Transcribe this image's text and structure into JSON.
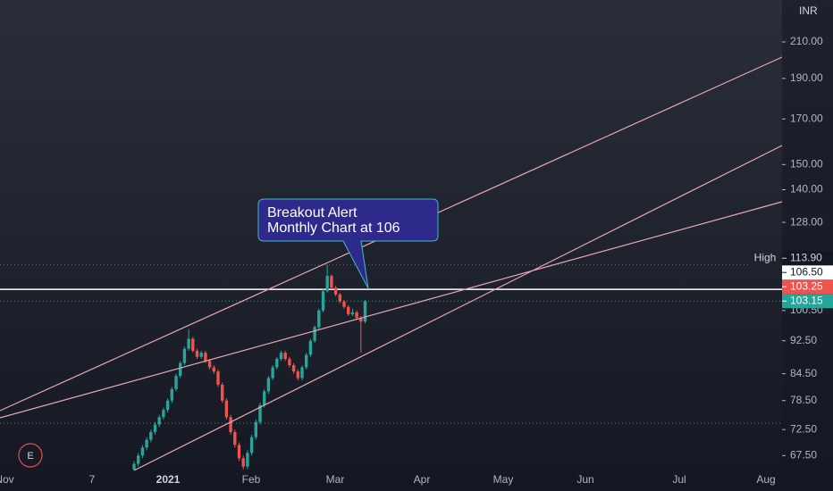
{
  "chart_data": {
    "type": "candlestick",
    "currency": "INR",
    "log_scale": true,
    "annotation": [
      "Breakout Alert",
      "Monthly Chart at 106"
    ],
    "event_marker": "E",
    "up_color": "#26a69a",
    "down_color": "#ef5350",
    "ylim": [
      64.8,
      235.6
    ],
    "yticks": [
      {
        "value": 210,
        "label": "210.00"
      },
      {
        "value": 190,
        "label": "190.00"
      },
      {
        "value": 170,
        "label": "170.00"
      },
      {
        "value": 150,
        "label": "150.00"
      },
      {
        "value": 140,
        "label": "140.00"
      },
      {
        "value": 128,
        "label": "128.00"
      },
      {
        "value": 100.5,
        "label": "100.50"
      },
      {
        "value": 92.5,
        "label": "92.50"
      },
      {
        "value": 84.5,
        "label": "84.50"
      },
      {
        "value": 78.5,
        "label": "78.50"
      },
      {
        "value": 72.5,
        "label": "72.50"
      },
      {
        "value": 67.5,
        "label": "67.50"
      }
    ],
    "price_labels": [
      {
        "name": "High",
        "value": 113.9,
        "label": "113.90",
        "bg": "#131722",
        "fg": "#d1d4dc",
        "line": "dotted",
        "line_color": "#6b6f7a"
      },
      {
        "value": 106.5,
        "label": "106.50",
        "bg": "#ffffff",
        "fg": "#131722",
        "line": "solid",
        "line_color": "#ffffff"
      },
      {
        "value": 103.25,
        "label": "103.25",
        "bg": "#ef5350",
        "fg": "#ffffff",
        "line": "none",
        "line_color": "#ef5350"
      },
      {
        "value": 103.15,
        "label": "103.15",
        "bg": "#26a69a",
        "fg": "#ffffff",
        "line": "dotted",
        "line_color": "#26a69a"
      }
    ],
    "x_labels": [
      "Nov",
      "7",
      "2021",
      "Feb",
      "Mar",
      "Apr",
      "May",
      "Jun",
      "Jul",
      "Aug"
    ],
    "open": [
      65.0,
      66.0,
      67.5,
      69.0,
      70.5,
      72.0,
      73.5,
      75.0,
      76.5,
      78.5,
      81.0,
      84.0,
      87.0,
      90.5,
      93.0,
      90.0,
      88.5,
      89.5,
      87.5,
      86.0,
      85.0,
      82.0,
      78.5,
      75.0,
      72.0,
      69.5,
      67.0,
      65.5,
      68.0,
      71.0,
      74.0,
      77.5,
      80.5,
      83.5,
      86.0,
      88.0,
      89.5,
      88.0,
      86.5,
      85.0,
      83.5,
      86.0,
      89.0,
      92.5,
      96.0,
      100.5,
      106.0,
      110.5,
      107.0,
      105.0,
      103.0,
      101.5,
      99.5,
      100.0,
      98.5,
      97.5
    ],
    "high": [
      66.5,
      68.0,
      69.5,
      71.0,
      72.5,
      74.0,
      75.5,
      77.0,
      79.0,
      81.5,
      84.5,
      87.5,
      91.0,
      95.5,
      93.5,
      90.5,
      90.0,
      90.0,
      88.0,
      86.5,
      85.5,
      82.5,
      79.0,
      75.5,
      72.5,
      70.0,
      67.5,
      68.5,
      71.5,
      74.5,
      78.0,
      81.0,
      84.0,
      86.5,
      88.5,
      90.0,
      90.0,
      88.5,
      87.0,
      85.5,
      86.5,
      89.5,
      93.0,
      96.5,
      101.0,
      106.5,
      113.9,
      111.0,
      107.5,
      105.5,
      103.5,
      102.0,
      101.0,
      100.5,
      99.0,
      103.5
    ],
    "low": [
      64.5,
      65.5,
      67.0,
      68.5,
      70.0,
      71.5,
      73.0,
      74.5,
      76.0,
      78.0,
      80.5,
      83.5,
      86.5,
      90.0,
      89.5,
      88.0,
      88.0,
      87.0,
      85.5,
      84.5,
      81.5,
      78.0,
      74.5,
      71.5,
      69.0,
      66.5,
      65.0,
      65.0,
      67.5,
      70.5,
      73.5,
      77.0,
      80.0,
      83.0,
      85.5,
      87.5,
      87.5,
      86.0,
      84.5,
      83.0,
      83.0,
      85.5,
      88.5,
      92.0,
      95.5,
      100.0,
      105.5,
      106.5,
      104.5,
      102.5,
      101.0,
      99.0,
      99.0,
      98.0,
      89.5,
      97.0
    ],
    "close": [
      66.0,
      67.5,
      69.0,
      70.5,
      72.0,
      73.5,
      75.0,
      76.5,
      78.5,
      81.0,
      84.0,
      87.0,
      90.5,
      93.0,
      90.0,
      88.5,
      89.5,
      87.5,
      86.0,
      85.0,
      82.0,
      78.5,
      75.0,
      72.0,
      69.5,
      67.0,
      65.5,
      68.0,
      71.0,
      74.0,
      77.5,
      80.5,
      83.5,
      86.0,
      88.0,
      89.5,
      88.0,
      86.5,
      85.0,
      83.5,
      86.0,
      89.0,
      92.5,
      96.0,
      100.5,
      106.0,
      110.5,
      107.0,
      105.0,
      103.0,
      101.5,
      99.5,
      100.0,
      98.5,
      97.5,
      103.15
    ]
  }
}
